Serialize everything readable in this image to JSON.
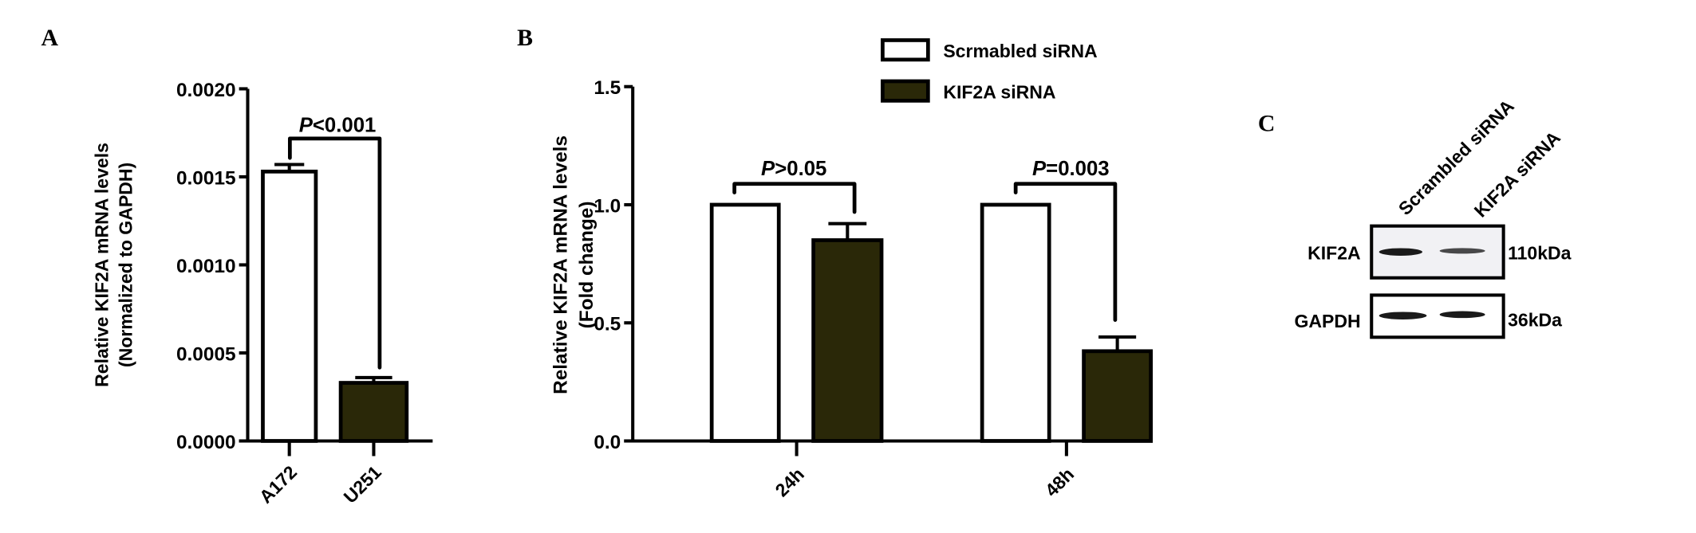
{
  "colors": {
    "control": "#ffffff",
    "knockdown": "#2a2808",
    "stroke": "#000000",
    "blot_bg": "#f1f1f4",
    "band": "#1a1a1a"
  },
  "panels": {
    "a": "A",
    "b": "B",
    "c": "C"
  },
  "chart_data": [
    {
      "type": "bar",
      "panel": "A",
      "categories": [
        "A172",
        "U251"
      ],
      "values": [
        0.00153,
        0.00033
      ],
      "errors": [
        4e-05,
        3e-05
      ],
      "fill_keys": [
        "control",
        "knockdown"
      ],
      "ylabel_line1": "Relative KIF2A mRNA levels",
      "ylabel_line2": "(Normalized to GAPDH)",
      "ylim": [
        0,
        0.002
      ],
      "yticks": [
        "0.0000",
        "0.0005",
        "0.0010",
        "0.0015",
        "0.0020"
      ],
      "grid": false,
      "annotations": [
        {
          "p": "P",
          "text": "<0.001"
        }
      ]
    },
    {
      "type": "bar",
      "panel": "B",
      "categories": [
        "24h",
        "48h"
      ],
      "series": [
        {
          "name": "Scrmabled siRNA",
          "values": [
            1.0,
            1.0
          ],
          "errors": [
            0,
            0
          ],
          "fill_key": "control"
        },
        {
          "name": "KIF2A siRNA",
          "values": [
            0.85,
            0.38
          ],
          "errors": [
            0.07,
            0.06
          ],
          "fill_key": "knockdown"
        }
      ],
      "ylabel_line1": "Relative KIF2A mRNA levels",
      "ylabel_line2": "(Fold change)",
      "ylim": [
        0,
        1.5
      ],
      "yticks": [
        "0.0",
        "0.5",
        "1.0",
        "1.5"
      ],
      "grid": false,
      "legend": "top-right",
      "annotations": [
        {
          "p": "P",
          "text": ">0.05"
        },
        {
          "p": "P",
          "text": "=0.003"
        }
      ]
    }
  ],
  "blot": {
    "lanes": [
      "Scrambled siRNA",
      "KIF2A siRNA"
    ],
    "rows": [
      {
        "protein": "KIF2A",
        "size": "110kDa",
        "band_intensity": [
          1.0,
          0.6
        ]
      },
      {
        "protein": "GAPDH",
        "size": "36kDa",
        "band_intensity": [
          1.0,
          0.95
        ]
      }
    ]
  }
}
